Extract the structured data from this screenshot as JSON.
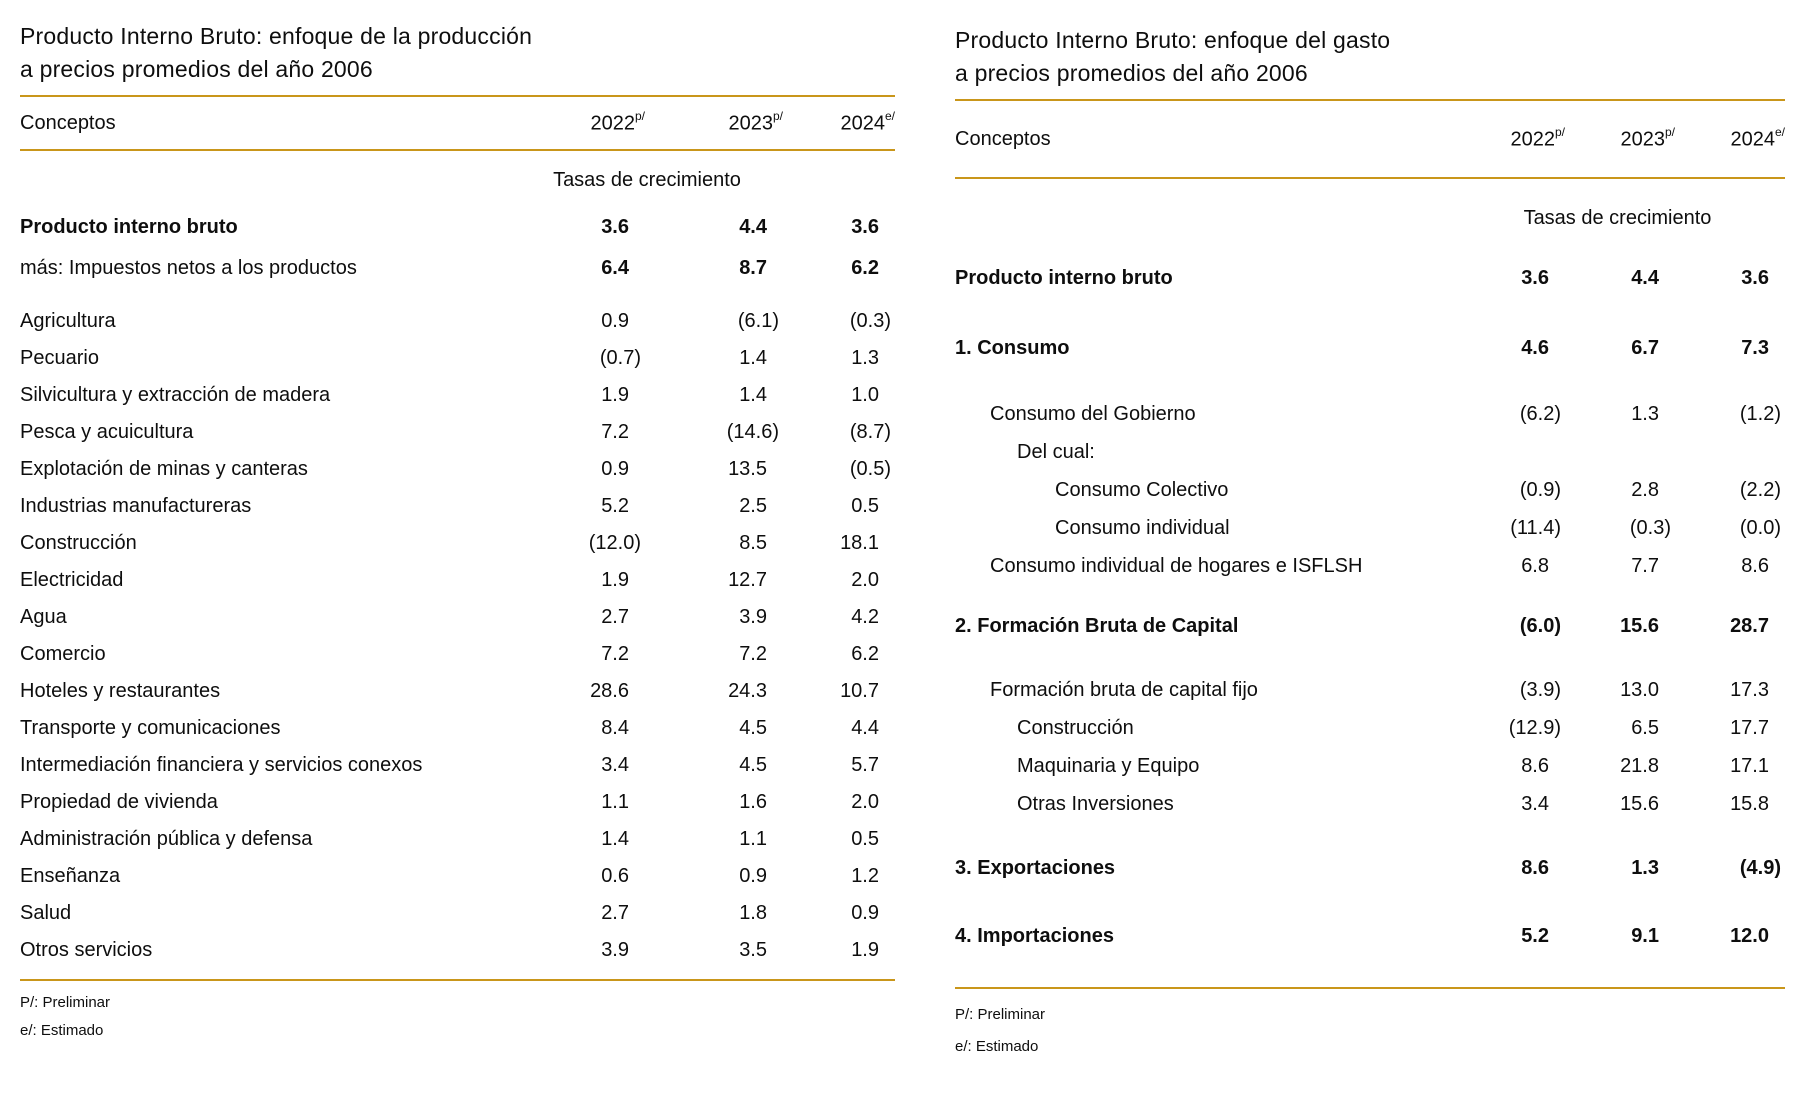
{
  "colors": {
    "accent": "#C9961A",
    "text": "#0e0e0e",
    "background": "#ffffff"
  },
  "footnotes": {
    "preliminar": "P/: Preliminar",
    "estimado": "e/: Estimado"
  },
  "production_table": {
    "title_line1": "Producto Interno Bruto: enfoque de la producción",
    "title_line2": "a precios promedios del año 2006",
    "concepts_header": "Conceptos",
    "year_columns": [
      {
        "label": "2022",
        "superscript": "p/"
      },
      {
        "label": "2023",
        "superscript": "p/"
      },
      {
        "label": "2024",
        "superscript": "e/"
      }
    ],
    "growth_header": "Tasas de crecimiento",
    "rows": [
      {
        "label": "Producto interno bruto",
        "values": [
          "3.6",
          "4.4",
          "3.6"
        ],
        "label_bold": true,
        "values_bold": true,
        "gap_after": 4
      },
      {
        "label": "más: Impuestos netos a los productos",
        "values": [
          "6.4",
          "8.7",
          "6.2"
        ],
        "label_bold": false,
        "values_bold": true,
        "gap_after": 16
      },
      {
        "label": "Agricultura",
        "values": [
          "0.9",
          "(6.1)",
          "(0.3)"
        ]
      },
      {
        "label": "Pecuario",
        "values": [
          "(0.7)",
          "1.4",
          "1.3"
        ]
      },
      {
        "label": "Silvicultura y extracción de madera",
        "values": [
          "1.9",
          "1.4",
          "1.0"
        ]
      },
      {
        "label": "Pesca y acuicultura",
        "values": [
          "7.2",
          "(14.6)",
          "(8.7)"
        ]
      },
      {
        "label": "Explotación de minas y canteras",
        "values": [
          "0.9",
          "13.5",
          "(0.5)"
        ]
      },
      {
        "label": "Industrias manufactureras",
        "values": [
          "5.2",
          "2.5",
          "0.5"
        ]
      },
      {
        "label": "Construcción",
        "values": [
          "(12.0)",
          "8.5",
          "18.1"
        ]
      },
      {
        "label": "Electricidad",
        "values": [
          "1.9",
          "12.7",
          "2.0"
        ]
      },
      {
        "label": "Agua",
        "values": [
          "2.7",
          "3.9",
          "4.2"
        ]
      },
      {
        "label": "Comercio",
        "values": [
          "7.2",
          "7.2",
          "6.2"
        ]
      },
      {
        "label": "Hoteles y restaurantes",
        "values": [
          "28.6",
          "24.3",
          "10.7"
        ]
      },
      {
        "label": "Transporte y comunicaciones",
        "values": [
          "8.4",
          "4.5",
          "4.4"
        ]
      },
      {
        "label": "Intermediación financiera y servicios conexos",
        "values": [
          "3.4",
          "4.5",
          "5.7"
        ]
      },
      {
        "label": "Propiedad de vivienda",
        "values": [
          "1.1",
          "1.6",
          "2.0"
        ]
      },
      {
        "label": "Administración pública y defensa",
        "values": [
          "1.4",
          "1.1",
          "0.5"
        ]
      },
      {
        "label": "Enseñanza",
        "values": [
          "0.6",
          "0.9",
          "1.2"
        ]
      },
      {
        "label": "Salud",
        "values": [
          "2.7",
          "1.8",
          "0.9"
        ]
      },
      {
        "label": "Otros servicios",
        "values": [
          "3.9",
          "3.5",
          "1.9"
        ]
      }
    ]
  },
  "expenditure_table": {
    "title_line1": "Producto Interno Bruto: enfoque del gasto",
    "title_line2": "a precios promedios del año 2006",
    "concepts_header": "Conceptos",
    "year_columns": [
      {
        "label": "2022",
        "superscript": "p/"
      },
      {
        "label": "2023",
        "superscript": "p/"
      },
      {
        "label": "2024",
        "superscript": "e/"
      }
    ],
    "growth_header": "Tasas de crecimiento",
    "rows": [
      {
        "label": "Producto interno bruto",
        "values": [
          "3.6",
          "4.4",
          "3.6"
        ],
        "label_bold": true,
        "values_bold": true,
        "gap_after": 28
      },
      {
        "label": "1. Consumo",
        "values": [
          "4.6",
          "6.7",
          "7.3"
        ],
        "label_bold": true,
        "values_bold": true,
        "gap_after": 26
      },
      {
        "label": "Consumo del Gobierno",
        "values": [
          "(6.2)",
          "1.3",
          "(1.2)"
        ],
        "indent": 1
      },
      {
        "label": "Del cual:",
        "values": [
          "",
          "",
          ""
        ],
        "indent": 2
      },
      {
        "label": "Consumo Colectivo",
        "values": [
          "(0.9)",
          "2.8",
          "(2.2)"
        ],
        "indent": 3
      },
      {
        "label": "Consumo individual",
        "values": [
          "(11.4)",
          "(0.3)",
          "(0.0)"
        ],
        "indent": 3
      },
      {
        "label": "Consumo individual de hogares e ISFLSH",
        "values": [
          "6.8",
          "7.7",
          "8.6"
        ],
        "indent": 1,
        "gap_after": 20
      },
      {
        "label": "2. Formación Bruta de Capital",
        "values": [
          "(6.0)",
          "15.6",
          "28.7"
        ],
        "label_bold": true,
        "values_bold": true,
        "gap_after": 24
      },
      {
        "label": "Formación bruta de capital fijo",
        "values": [
          "(3.9)",
          "13.0",
          "17.3"
        ],
        "indent": 1
      },
      {
        "label": "Construcción",
        "values": [
          "(12.9)",
          "6.5",
          "17.7"
        ],
        "indent": 2
      },
      {
        "label": "Maquinaria y Equipo",
        "values": [
          "8.6",
          "21.8",
          "17.1"
        ],
        "indent": 2
      },
      {
        "label": "Otras Inversiones",
        "values": [
          "3.4",
          "15.6",
          "15.8"
        ],
        "indent": 2,
        "gap_after": 24
      },
      {
        "label": "3. Exportaciones",
        "values": [
          "8.6",
          "1.3",
          "(4.9)"
        ],
        "label_bold": true,
        "values_bold": true,
        "gap_after": 26
      },
      {
        "label": "4. Importaciones",
        "values": [
          "5.2",
          "9.1",
          "12.0"
        ],
        "label_bold": true,
        "values_bold": true
      }
    ]
  }
}
